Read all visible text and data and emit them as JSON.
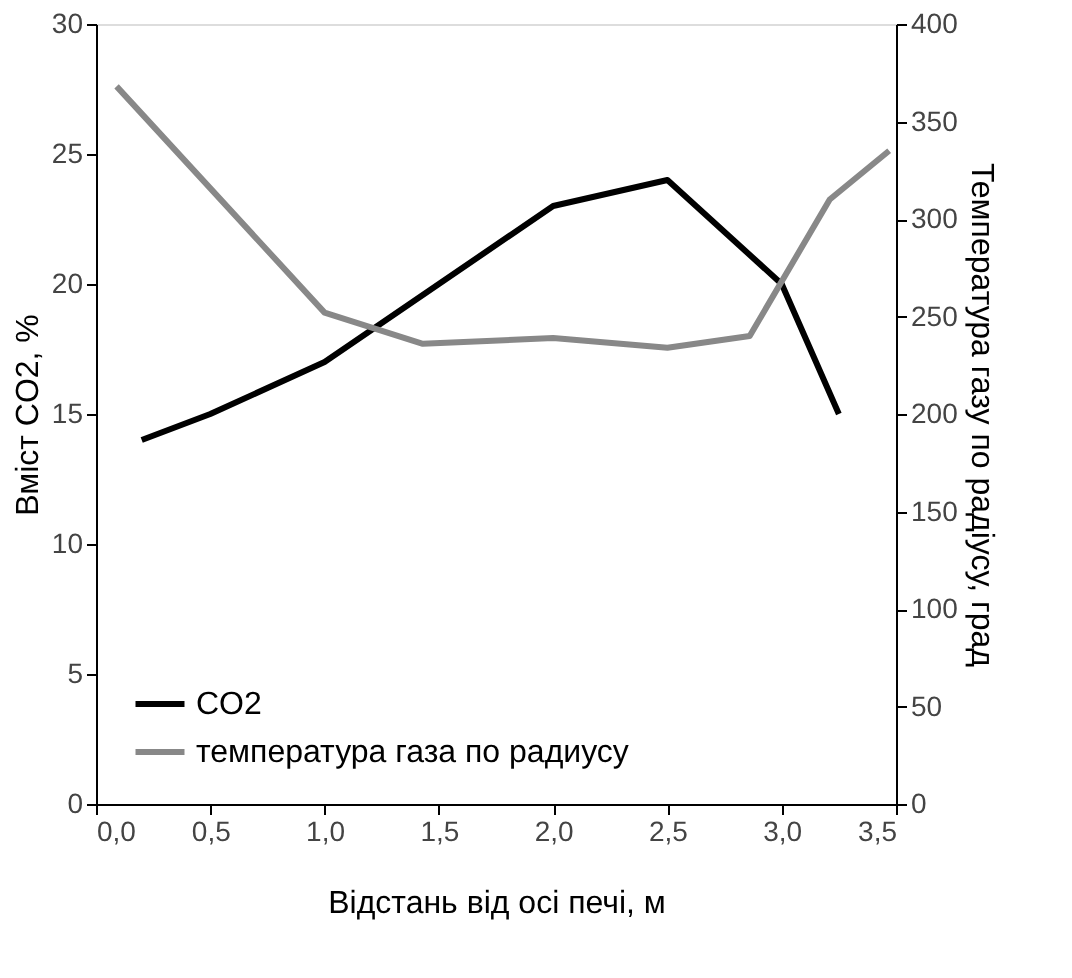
{
  "chart_data": {
    "type": "line",
    "xlabel": "Відстань від осі печі, м",
    "ylabel": "Вміст CO2, %",
    "y2label": "Температура газу по радіусу, град",
    "xlim": [
      0,
      3.5
    ],
    "xticks": [
      {
        "value": 0,
        "label": "0,0"
      },
      {
        "value": 0.5,
        "label": "0,5"
      },
      {
        "value": 1,
        "label": "1,0"
      },
      {
        "value": 1.5,
        "label": "1,5"
      },
      {
        "value": 2,
        "label": "2,0"
      },
      {
        "value": 2.5,
        "label": "2,5"
      },
      {
        "value": 3,
        "label": "3,0"
      },
      {
        "value": 3.5,
        "label": "3,5"
      }
    ],
    "ylim": [
      0,
      30
    ],
    "yticks": [
      0,
      5,
      10,
      15,
      20,
      25,
      30
    ],
    "y2lim": [
      0,
      400
    ],
    "y2ticks": [
      0,
      50,
      100,
      150,
      200,
      250,
      300,
      350,
      400
    ],
    "series": [
      {
        "name": "CO2",
        "color": "#000000",
        "x": [
          0.2,
          0.5,
          1.0,
          1.5,
          2.0,
          2.5,
          3.0,
          3.25
        ],
        "values": [
          14,
          15,
          17,
          20,
          23,
          24,
          20,
          15
        ]
      },
      {
        "name": "температура газа по радиусу",
        "color": "#888888",
        "axis": "y2",
        "x": [
          0.09,
          1.0,
          1.43,
          2.0,
          2.5,
          2.86,
          3.21,
          3.47
        ],
        "values": [
          368,
          252,
          236,
          239,
          234,
          240,
          310,
          335
        ]
      }
    ],
    "grid": false,
    "legend": "bottom left",
    "marker": "none",
    "line_style": "solid"
  }
}
